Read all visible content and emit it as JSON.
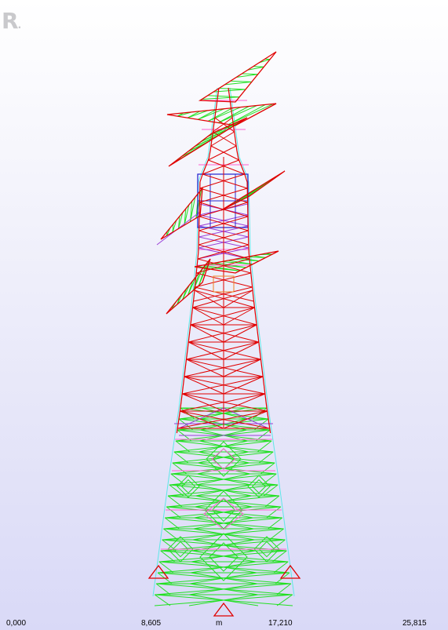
{
  "app": {
    "watermark": "R"
  },
  "view": {
    "scale_labels": [
      "0,000",
      "8,605",
      "17,210",
      "25,815"
    ],
    "unit": "m"
  },
  "colors": {
    "red": "#e00000",
    "green": "#22e022",
    "magenta": "#ff60d0",
    "cyan": "#5ee8e8",
    "purple": "#9a40d8",
    "blue": "#2a2ad0",
    "orange": "#f08020"
  }
}
